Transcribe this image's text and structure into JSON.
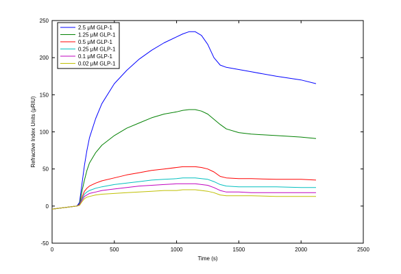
{
  "chart_data": {
    "type": "line",
    "xlabel": "Time (s)",
    "ylabel": "Refractive Index Units (μRIU)",
    "xlim": [
      0,
      2500
    ],
    "ylim": [
      -50,
      250
    ],
    "xticks": [
      0,
      500,
      1000,
      1500,
      2000,
      2500
    ],
    "yticks": [
      -50,
      0,
      50,
      100,
      150,
      200,
      250
    ],
    "grid": false,
    "legend_position": "top-left",
    "series": [
      {
        "name": "2.5 μM GLP-1",
        "color": "#0000ff",
        "x": [
          0,
          100,
          200,
          220,
          240,
          260,
          280,
          300,
          350,
          400,
          500,
          600,
          700,
          800,
          900,
          1000,
          1050,
          1100,
          1150,
          1200,
          1250,
          1300,
          1350,
          1400,
          1500,
          1600,
          1800,
          2000,
          2120
        ],
        "y": [
          -4,
          -2,
          0,
          5,
          30,
          55,
          75,
          92,
          118,
          138,
          165,
          183,
          198,
          210,
          220,
          228,
          232,
          235,
          235,
          230,
          218,
          200,
          190,
          187,
          184,
          181,
          175,
          170,
          165
        ]
      },
      {
        "name": "1.25 μM GLP-1",
        "color": "#008000",
        "x": [
          0,
          100,
          200,
          220,
          240,
          260,
          280,
          300,
          350,
          400,
          500,
          600,
          700,
          800,
          900,
          1000,
          1050,
          1100,
          1150,
          1200,
          1250,
          1300,
          1350,
          1400,
          1500,
          1600,
          1800,
          2000,
          2120
        ],
        "y": [
          -4,
          -2,
          0,
          3,
          20,
          35,
          48,
          58,
          72,
          82,
          95,
          105,
          112,
          119,
          124,
          127,
          129,
          130,
          130,
          128,
          124,
          117,
          110,
          104,
          99,
          97,
          95,
          93,
          91
        ]
      },
      {
        "name": "0.5 μM GLP-1",
        "color": "#ff0000",
        "x": [
          0,
          100,
          200,
          220,
          240,
          260,
          280,
          300,
          350,
          400,
          500,
          600,
          700,
          800,
          900,
          1000,
          1050,
          1100,
          1150,
          1200,
          1250,
          1300,
          1350,
          1400,
          1500,
          1600,
          1800,
          2000,
          2120
        ],
        "y": [
          -4,
          -2,
          0,
          2,
          12,
          20,
          24,
          27,
          31,
          34,
          38,
          42,
          45,
          48,
          50,
          52,
          53,
          53,
          53,
          52,
          50,
          46,
          40,
          38,
          37,
          37,
          36,
          36,
          35
        ]
      },
      {
        "name": "0.25 μM GLP-1",
        "color": "#00bfbf",
        "x": [
          0,
          100,
          200,
          220,
          240,
          260,
          280,
          300,
          350,
          400,
          500,
          600,
          700,
          800,
          900,
          1000,
          1050,
          1100,
          1150,
          1200,
          1250,
          1300,
          1350,
          1400,
          1500,
          1600,
          1800,
          2000,
          2120
        ],
        "y": [
          -4,
          -2,
          0,
          2,
          10,
          16,
          19,
          21,
          24,
          26,
          29,
          31,
          33,
          35,
          36,
          37,
          38,
          38,
          38,
          37,
          36,
          33,
          29,
          27,
          26,
          26,
          26,
          25,
          25
        ]
      },
      {
        "name": "0.1 μM GLP-1",
        "color": "#bf00bf",
        "x": [
          0,
          100,
          200,
          220,
          240,
          260,
          280,
          300,
          350,
          400,
          500,
          600,
          700,
          800,
          900,
          1000,
          1050,
          1100,
          1150,
          1200,
          1250,
          1300,
          1350,
          1400,
          1500,
          1600,
          1800,
          2000,
          2120
        ],
        "y": [
          -4,
          -2,
          0,
          2,
          8,
          13,
          15,
          17,
          19,
          21,
          23,
          25,
          27,
          28,
          29,
          30,
          30,
          30,
          30,
          29,
          28,
          25,
          21,
          19,
          19,
          18,
          18,
          18,
          18
        ]
      },
      {
        "name": "0.02 μM GLP-1",
        "color": "#bfbf00",
        "x": [
          0,
          100,
          200,
          220,
          240,
          260,
          280,
          300,
          350,
          400,
          500,
          600,
          700,
          800,
          900,
          1000,
          1050,
          1100,
          1150,
          1200,
          1250,
          1300,
          1350,
          1400,
          1500,
          1600,
          1800,
          2000,
          2120
        ],
        "y": [
          -4,
          -2,
          0,
          1,
          6,
          10,
          12,
          13,
          15,
          16,
          17,
          18,
          19,
          20,
          21,
          21,
          22,
          22,
          22,
          21,
          20,
          18,
          15,
          14,
          14,
          14,
          13,
          13,
          13
        ]
      }
    ]
  }
}
